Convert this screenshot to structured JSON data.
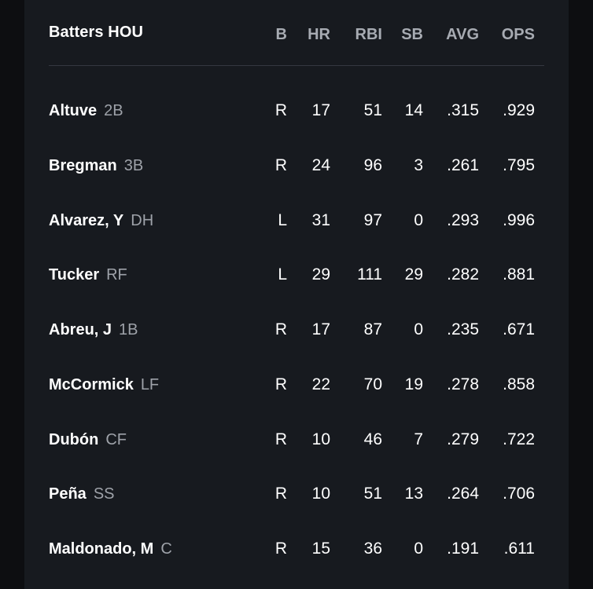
{
  "table": {
    "title": "Batters HOU",
    "columns": [
      "B",
      "HR",
      "RBI",
      "SB",
      "AVG",
      "OPS"
    ],
    "rows": [
      {
        "name": "Altuve",
        "pos": "2B",
        "b": "R",
        "hr": "17",
        "rbi": "51",
        "sb": "14",
        "avg": ".315",
        "ops": ".929"
      },
      {
        "name": "Bregman",
        "pos": "3B",
        "b": "R",
        "hr": "24",
        "rbi": "96",
        "sb": "3",
        "avg": ".261",
        "ops": ".795"
      },
      {
        "name": "Alvarez, Y",
        "pos": "DH",
        "b": "L",
        "hr": "31",
        "rbi": "97",
        "sb": "0",
        "avg": ".293",
        "ops": ".996"
      },
      {
        "name": "Tucker",
        "pos": "RF",
        "b": "L",
        "hr": "29",
        "rbi": "111",
        "sb": "29",
        "avg": ".282",
        "ops": ".881"
      },
      {
        "name": "Abreu, J",
        "pos": "1B",
        "b": "R",
        "hr": "17",
        "rbi": "87",
        "sb": "0",
        "avg": ".235",
        "ops": ".671"
      },
      {
        "name": "McCormick",
        "pos": "LF",
        "b": "R",
        "hr": "22",
        "rbi": "70",
        "sb": "19",
        "avg": ".278",
        "ops": ".858"
      },
      {
        "name": "Dubón",
        "pos": "CF",
        "b": "R",
        "hr": "10",
        "rbi": "46",
        "sb": "7",
        "avg": ".279",
        "ops": ".722"
      },
      {
        "name": "Peña",
        "pos": "SS",
        "b": "R",
        "hr": "10",
        "rbi": "51",
        "sb": "13",
        "avg": ".264",
        "ops": ".706"
      },
      {
        "name": "Maldonado, M",
        "pos": "C",
        "b": "R",
        "hr": "15",
        "rbi": "36",
        "sb": "0",
        "avg": ".191",
        "ops": ".611"
      }
    ]
  }
}
